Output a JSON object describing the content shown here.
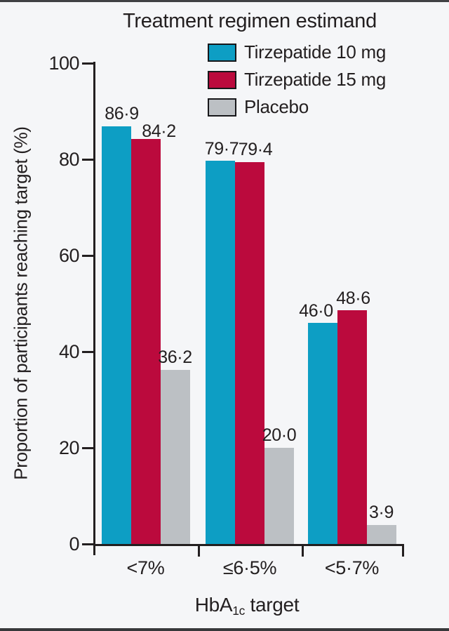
{
  "chart_data": {
    "type": "bar",
    "title": "Treatment regimen estimand",
    "categories": [
      "<7%",
      "≤6·5%",
      "<5·7%"
    ],
    "series": [
      {
        "name": "Tirzepatide 10 mg",
        "color": "#0d9ec4",
        "values": [
          86.9,
          79.7,
          46.0
        ],
        "labels": [
          "86·9",
          "79·7",
          "46·0"
        ]
      },
      {
        "name": "Tirzepatide 15 mg",
        "color": "#bb0a3d",
        "values": [
          84.2,
          79.4,
          48.6
        ],
        "labels": [
          "84·2",
          "79·4",
          "48·6"
        ]
      },
      {
        "name": "Placebo",
        "color": "#bcc0c4",
        "values": [
          36.2,
          20.0,
          3.9
        ],
        "labels": [
          "36·2",
          "20·0",
          "3·9"
        ]
      }
    ],
    "ylabel": "Proportion of participants reaching target (%)",
    "xlabel": {
      "prefix": "HbA",
      "sub": "1c",
      "suffix": " target"
    },
    "ylim": [
      0,
      100
    ],
    "yticks": [
      0,
      20,
      40,
      60,
      80,
      100
    ],
    "grid": false,
    "legend_position": "top-right",
    "axis_color": "#231f20",
    "background_color": "#f5f6f8"
  }
}
